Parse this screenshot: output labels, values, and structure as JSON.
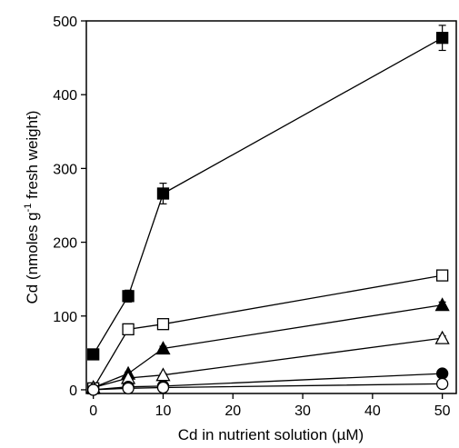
{
  "chart_data": {
    "type": "line",
    "xlabel": "Cd in nutrient solution (µM)",
    "ylabel_prefix": "Cd (nmoles g",
    "ylabel_sup": "-1",
    "ylabel_suffix": " fresh weight)",
    "xlim": [
      -1,
      52
    ],
    "ylim": [
      -5,
      500
    ],
    "x_ticks": [
      0,
      10,
      20,
      30,
      40,
      50
    ],
    "y_ticks": [
      0,
      100,
      200,
      300,
      400,
      500
    ],
    "x": [
      0,
      5,
      10,
      50
    ],
    "grid": false,
    "series": [
      {
        "marker": "square",
        "fill": "filled",
        "values": [
          48,
          127,
          266,
          477
        ],
        "errors": [
          0,
          8,
          14,
          17
        ]
      },
      {
        "marker": "square",
        "fill": "open",
        "values": [
          2,
          82,
          89,
          155
        ],
        "errors": [
          0,
          3,
          3,
          6
        ]
      },
      {
        "marker": "triangle",
        "fill": "filled",
        "values": [
          3,
          22,
          56,
          115
        ],
        "errors": [
          0,
          2,
          3,
          4
        ]
      },
      {
        "marker": "triangle",
        "fill": "open",
        "values": [
          3,
          16,
          20,
          70
        ],
        "errors": [
          0,
          2,
          2,
          3
        ]
      },
      {
        "marker": "circle",
        "fill": "filled",
        "values": [
          0,
          4,
          5,
          22
        ],
        "errors": [
          0,
          1,
          1,
          2
        ]
      },
      {
        "marker": "circle",
        "fill": "open",
        "values": [
          0,
          2,
          3,
          8
        ],
        "errors": [
          0,
          1,
          1,
          1
        ]
      }
    ]
  }
}
